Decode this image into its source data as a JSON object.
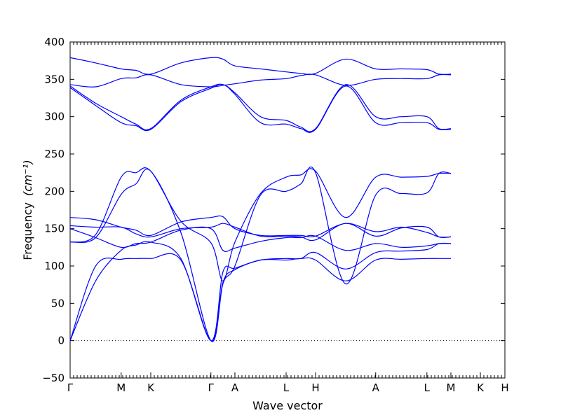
{
  "chart_data": {
    "type": "line",
    "xlabel": "Wave vector",
    "ylabel": "Frequency",
    "ylabel_unit": "(cm⁻¹)",
    "ylim": [
      -50,
      400
    ],
    "yticks": [
      -50,
      0,
      50,
      100,
      150,
      200,
      250,
      300,
      350,
      400
    ],
    "x_positions": [
      0,
      0.1174,
      0.1855,
      0.3238,
      0.379,
      0.4968,
      0.5645,
      0.7028,
      0.8206,
      0.8758,
      0.9436,
      1.0
    ],
    "x_labels": [
      "Γ",
      "M",
      "K",
      "Γ",
      "A",
      "L",
      "H",
      "A",
      "L",
      "M",
      "K",
      "H"
    ],
    "zero_line": true,
    "line_color": "#0000ff",
    "bands": [
      [
        0,
        100,
        109,
        110,
        110,
        108,
        0,
        78,
        95,
        108,
        108,
        110,
        108,
        80,
        108,
        109,
        110,
        110,
        110
      ],
      [
        0,
        80,
        121,
        128,
        132,
        110,
        0,
        92,
        97,
        108,
        110,
        110,
        118,
        96,
        118,
        120,
        122,
        130,
        130
      ],
      [
        132,
        138,
        196,
        210,
        227,
        145,
        0,
        76,
        100,
        195,
        200,
        210,
        225,
        76,
        195,
        197,
        198,
        224,
        224
      ],
      [
        132,
        142,
        219,
        225,
        227,
        160,
        131,
        80,
        132,
        197,
        219,
        222,
        227,
        165,
        219,
        219,
        220,
        224,
        224
      ],
      [
        150,
        138,
        125,
        130,
        132,
        148,
        150,
        121,
        124,
        133,
        138,
        138,
        140,
        121,
        130,
        125,
        127,
        130,
        130
      ],
      [
        154,
        152,
        152,
        143,
        139,
        150,
        152,
        157,
        152,
        140,
        140,
        139,
        135,
        157,
        140,
        151,
        152,
        139,
        139
      ],
      [
        165,
        162,
        152,
        148,
        141,
        159,
        165,
        166,
        150,
        141,
        141,
        141,
        140,
        157,
        146,
        152,
        145,
        139,
        139
      ],
      [
        339,
        315,
        292,
        288,
        283,
        320,
        338,
        343,
        330,
        292,
        290,
        284,
        283,
        341,
        292,
        292,
        292,
        283,
        283
      ],
      [
        341,
        318,
        300,
        290,
        284,
        322,
        340,
        343,
        332,
        300,
        295,
        286,
        284,
        343,
        300,
        300,
        300,
        284,
        284
      ],
      [
        343,
        340,
        351,
        352,
        356,
        343,
        340,
        342,
        344,
        349,
        351,
        355,
        356,
        342,
        350,
        351,
        351,
        356,
        356
      ],
      [
        379,
        372,
        364,
        362,
        357,
        372,
        379,
        377,
        368,
        364,
        360,
        358,
        358,
        377,
        364,
        364,
        363,
        357,
        357
      ]
    ]
  }
}
